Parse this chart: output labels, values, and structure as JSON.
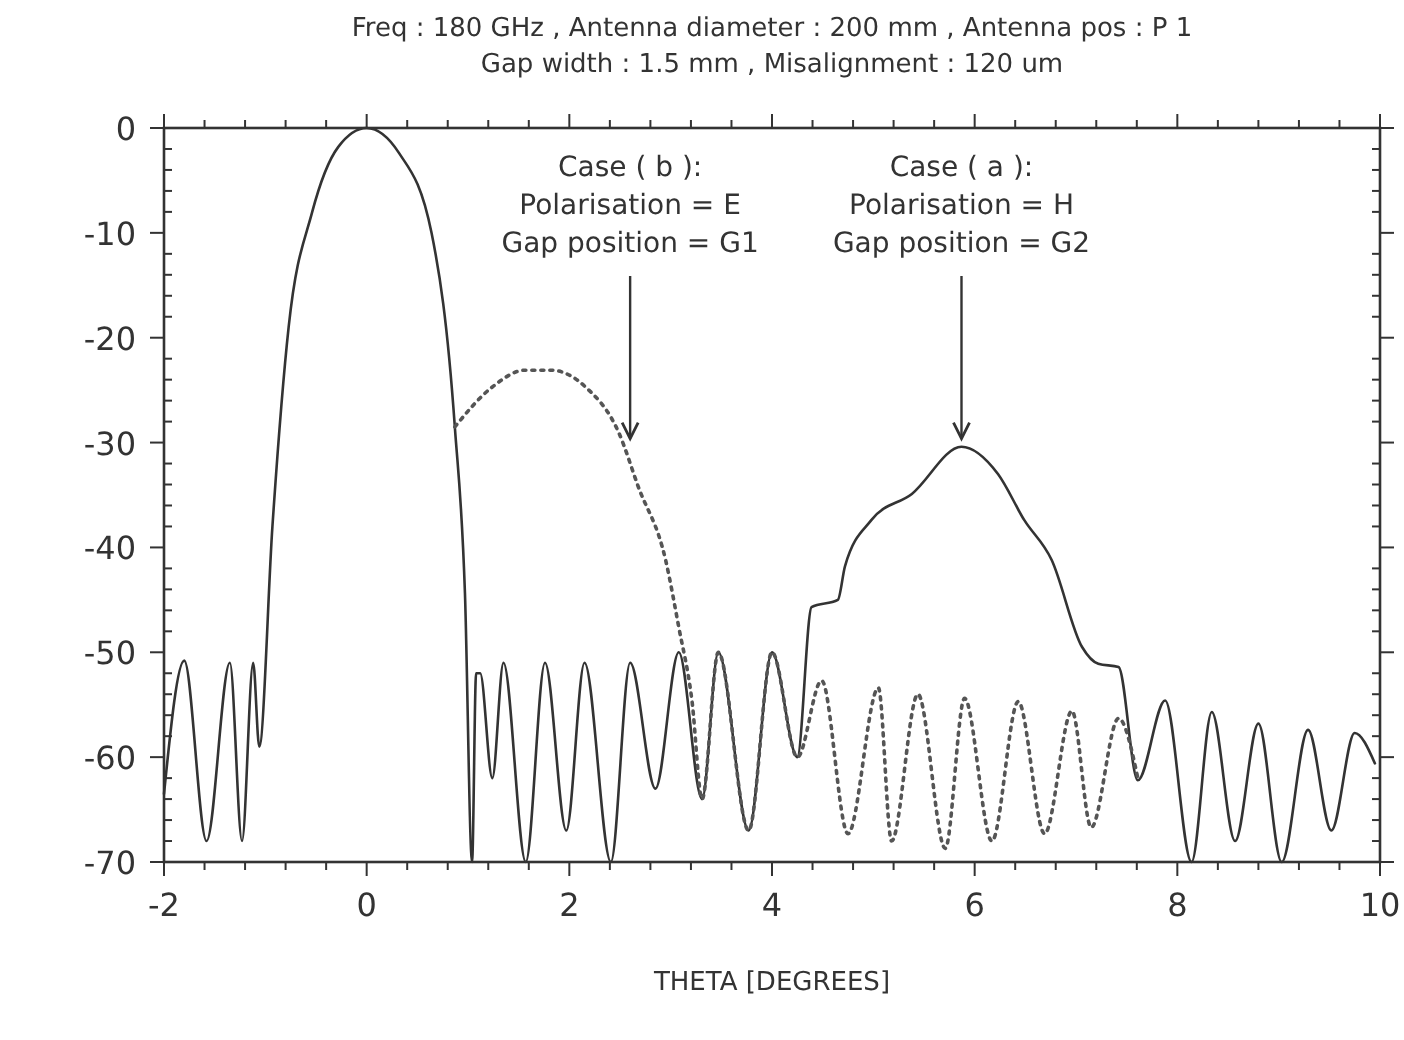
{
  "chart_data": {
    "type": "line",
    "title": "Freq : 180 GHz , Antenna diameter : 200 mm , Antenna pos : P 1",
    "subtitle": "Gap width : 1.5 mm , Misalignment : 120 um",
    "xlabel": "THETA [DEGREES]",
    "xlim": [
      -2,
      10
    ],
    "ylim": [
      -70,
      0
    ],
    "xticks": [
      -2,
      0,
      2,
      4,
      6,
      8,
      10
    ],
    "yticks": [
      0,
      -10,
      -20,
      -30,
      -40,
      -50,
      -60,
      -70
    ],
    "marker": "none",
    "annotations": [
      {
        "text": "Case ( b ):\nPolarisation = E\nGap position = G1",
        "x": 2.6,
        "y": -30
      },
      {
        "text": "Case ( a ):\nPolarisation = H\nGap position = G2",
        "x": 5.87,
        "y": -30
      }
    ],
    "series": [
      {
        "color": "#333333",
        "line_style": "solid",
        "x": [
          -2,
          -1.8,
          -1.58,
          -1.35,
          -1.23,
          -1.12,
          -1.06,
          -0.93,
          -0.77,
          -0.54,
          -0.28,
          0,
          0.32,
          0.64,
          0.87,
          0.97,
          1.04,
          1.08,
          1.12,
          1.24,
          1.35,
          1.57,
          1.76,
          1.97,
          2.15,
          2.41,
          2.6,
          2.85,
          3.08,
          3.31,
          3.47,
          3.77,
          4.0,
          4.25,
          4.39,
          4.65,
          4.72,
          4.98,
          5.38,
          5.87,
          6.23,
          6.49,
          6.76,
          7.06,
          7.22,
          7.42,
          7.61,
          7.88,
          8.14,
          8.34,
          8.57,
          8.8,
          9.03,
          9.29,
          9.52,
          9.75,
          9.95
        ],
        "values": [
          -63.5,
          -50.8,
          -68,
          -51,
          -68,
          -51,
          -59,
          -38,
          -19,
          -8.1,
          -1.8,
          0,
          -2.4,
          -10,
          -28.5,
          -44.4,
          -70,
          -52,
          -52,
          -62,
          -51,
          -70,
          -51,
          -67,
          -51,
          -70,
          -51,
          -63,
          -50,
          -64,
          -50,
          -67,
          -50,
          -60,
          -45.7,
          -45,
          -41.8,
          -37.4,
          -34.9,
          -30.4,
          -33,
          -37.4,
          -41.2,
          -49.5,
          -51.1,
          -51.4,
          -62.2,
          -54.6,
          -70,
          -55.7,
          -68,
          -56.8,
          -70,
          -57.4,
          -67,
          -57.7,
          -60.6
        ]
      },
      {
        "color": "#555555",
        "line_style": "dotted",
        "x": [
          0.87,
          1.24,
          1.56,
          1.82,
          2.16,
          2.49,
          2.68,
          2.95,
          3.08,
          3.21,
          3.31,
          3.47,
          3.77,
          4.0,
          4.25,
          4.49,
          4.75,
          5.05,
          5.18,
          5.44,
          5.71,
          5.9,
          6.17,
          6.43,
          6.69,
          6.96,
          7.15,
          7.42,
          7.61
        ],
        "values": [
          -28.5,
          -24.7,
          -23.1,
          -23.1,
          -24.7,
          -29.1,
          -34.2,
          -41.2,
          -47.6,
          -54.6,
          -64,
          -50,
          -67,
          -50,
          -60,
          -52.7,
          -67.3,
          -53.4,
          -68,
          -54,
          -68.7,
          -54.4,
          -68,
          -54.7,
          -67.3,
          -55.6,
          -66.7,
          -56.3,
          -62
        ]
      }
    ]
  }
}
